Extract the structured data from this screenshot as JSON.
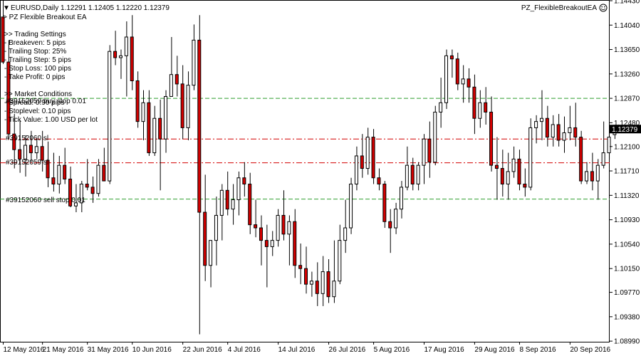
{
  "header": {
    "symbol_line": "EURUSD,Daily  1.12291 1.12405 1.12220 1.12379",
    "ea_name": "> PZ Flexible Breakout EA",
    "ea_corner_name": "PZ_FlexibleBreakoutEA"
  },
  "settings_lines": [
    ">> Trading Settings",
    "- Breakeven: 5 pips",
    "- Trailing Stop: 25%",
    "- Trailing Step: 5 pips",
    "- Stop Loss: 100 pips",
    "- Take Profit: 0 pips",
    "",
    ">> Market Conditions",
    "- Spread: 0.90 pips",
    "- Stoplevel: 0.10 pips",
    "- Tick Value: 1.00 USD per lot"
  ],
  "order_labels": {
    "buy_stop": "#39152059 buy stop 0.01",
    "sl_upper": "#39152060 sl",
    "sl_lower": "#39152059 sl",
    "sell_stop": "#39152060 sell stop 0.01"
  },
  "colors": {
    "bull_body": "#ffffff",
    "bear_body": "#d40000",
    "wick": "#000000",
    "buy_line": "#2e9f2e",
    "sl_line": "#d40000",
    "price_box": "#000000"
  },
  "chart_data": {
    "type": "candlestick",
    "symbol": "EURUSD",
    "timeframe": "Daily",
    "current_price": "1.12379",
    "ylim": [
      1.0898,
      1.1443
    ],
    "y_ticks": [
      "1.14430",
      "1.14040",
      "1.13650",
      "1.13260",
      "1.12870",
      "1.12480",
      "1.12100",
      "1.11710",
      "1.11320",
      "1.10930",
      "1.10540",
      "1.10150",
      "1.09770",
      "1.09380",
      "1.08990"
    ],
    "x_tick_labels": [
      "12 May 2016",
      "21 May 2016",
      "31 May 2016",
      "10 Jun 2016",
      "22 Jun 2016",
      "4 Jul 2016",
      "14 Jul 2016",
      "26 Jul 2016",
      "5 Aug 2016",
      "17 Aug 2016",
      "29 Aug 2016",
      "8 Sep 2016",
      "20 Sep 2016"
    ],
    "x_tick_bar_index": [
      0,
      7,
      15,
      23,
      32,
      40,
      49,
      58,
      66,
      75,
      84,
      92,
      101
    ],
    "levels": {
      "buy_stop": 1.1287,
      "sl_upper": 1.1222,
      "sl_lower": 1.1184,
      "sell_stop": 1.1126
    },
    "candles": [
      [
        1.1417,
        1.1443,
        1.1342,
        1.1345
      ],
      [
        1.1345,
        1.138,
        1.1222,
        1.123
      ],
      [
        1.123,
        1.1262,
        1.1175,
        1.1205
      ],
      [
        1.1205,
        1.1252,
        1.1168,
        1.119
      ],
      [
        1.119,
        1.1228,
        1.1162,
        1.1212
      ],
      [
        1.1212,
        1.1235,
        1.1185,
        1.12
      ],
      [
        1.12,
        1.1222,
        1.119,
        1.121
      ],
      [
        1.121,
        1.1235,
        1.117,
        1.1188
      ],
      [
        1.1188,
        1.1218,
        1.1145,
        1.116
      ],
      [
        1.116,
        1.12,
        1.1138,
        1.115
      ],
      [
        1.115,
        1.1195,
        1.1135,
        1.118
      ],
      [
        1.118,
        1.1208,
        1.115,
        1.1158
      ],
      [
        1.1158,
        1.1178,
        1.1113,
        1.1115
      ],
      [
        1.1115,
        1.115,
        1.1105,
        1.112
      ],
      [
        1.112,
        1.1155,
        1.1105,
        1.115
      ],
      [
        1.115,
        1.119,
        1.114,
        1.1145
      ],
      [
        1.1145,
        1.1162,
        1.112,
        1.1135
      ],
      [
        1.1135,
        1.119,
        1.113,
        1.118
      ],
      [
        1.118,
        1.1208,
        1.1155,
        1.1155
      ],
      [
        1.1155,
        1.1372,
        1.115,
        1.1362
      ],
      [
        1.1362,
        1.1395,
        1.134,
        1.1352
      ],
      [
        1.1352,
        1.1365,
        1.1318,
        1.1355
      ],
      [
        1.1355,
        1.141,
        1.129,
        1.1385
      ],
      [
        1.1385,
        1.142,
        1.13,
        1.1315
      ],
      [
        1.1315,
        1.133,
        1.124,
        1.125
      ],
      [
        1.125,
        1.13,
        1.122,
        1.128
      ],
      [
        1.128,
        1.13,
        1.1195,
        1.12
      ],
      [
        1.12,
        1.1275,
        1.1195,
        1.1255
      ],
      [
        1.1255,
        1.1285,
        1.114,
        1.1222
      ],
      [
        1.1222,
        1.13,
        1.12,
        1.129
      ],
      [
        1.129,
        1.1385,
        1.129,
        1.1325
      ],
      [
        1.1325,
        1.1355,
        1.129,
        1.131
      ],
      [
        1.131,
        1.134,
        1.1222,
        1.124
      ],
      [
        1.124,
        1.133,
        1.122,
        1.1308
      ],
      [
        1.1308,
        1.1405,
        1.13,
        1.138
      ],
      [
        1.138,
        1.142,
        1.091,
        1.1105
      ],
      [
        1.1105,
        1.1165,
        1.0995,
        1.102
      ],
      [
        1.102,
        1.106,
        1.0985,
        1.106
      ],
      [
        1.106,
        1.113,
        1.102,
        1.11
      ],
      [
        1.11,
        1.115,
        1.106,
        1.114
      ],
      [
        1.114,
        1.117,
        1.11,
        1.111
      ],
      [
        1.111,
        1.115,
        1.1085,
        1.1125
      ],
      [
        1.1125,
        1.117,
        1.11,
        1.116
      ],
      [
        1.116,
        1.1185,
        1.113,
        1.115
      ],
      [
        1.115,
        1.1168,
        1.107,
        1.1085
      ],
      [
        1.1085,
        1.1125,
        1.1065,
        1.108
      ],
      [
        1.108,
        1.11,
        1.102,
        1.106
      ],
      [
        1.106,
        1.1085,
        1.0985,
        1.105
      ],
      [
        1.105,
        1.1075,
        1.1035,
        1.106
      ],
      [
        1.106,
        1.111,
        1.105,
        1.11
      ],
      [
        1.11,
        1.114,
        1.106,
        1.107
      ],
      [
        1.107,
        1.11,
        1.102,
        1.109
      ],
      [
        1.109,
        1.111,
        1.1,
        1.102
      ],
      [
        1.102,
        1.1055,
        1.099,
        1.1015
      ],
      [
        1.1015,
        1.105,
        1.0975,
        1.099
      ],
      [
        1.099,
        1.101,
        1.097,
        1.0995
      ],
      [
        1.0995,
        1.1025,
        1.0955,
        1.0975
      ],
      [
        1.0975,
        1.1035,
        1.0955,
        1.101
      ],
      [
        1.101,
        1.103,
        1.096,
        1.097
      ],
      [
        1.097,
        1.106,
        1.096,
        1.0995
      ],
      [
        1.0995,
        1.1085,
        1.099,
        1.106
      ],
      [
        1.106,
        1.1125,
        1.104,
        1.108
      ],
      [
        1.108,
        1.116,
        1.107,
        1.115
      ],
      [
        1.115,
        1.121,
        1.114,
        1.1195
      ],
      [
        1.1195,
        1.123,
        1.116,
        1.1175
      ],
      [
        1.1175,
        1.124,
        1.1165,
        1.1225
      ],
      [
        1.1225,
        1.1238,
        1.115,
        1.116
      ],
      [
        1.116,
        1.1175,
        1.114,
        1.115
      ],
      [
        1.115,
        1.1155,
        1.108,
        1.109
      ],
      [
        1.109,
        1.111,
        1.104,
        1.108
      ],
      [
        1.108,
        1.112,
        1.107,
        1.111
      ],
      [
        1.111,
        1.1155,
        1.1095,
        1.1145
      ],
      [
        1.1145,
        1.121,
        1.114,
        1.118
      ],
      [
        1.118,
        1.1192,
        1.114,
        1.115
      ],
      [
        1.115,
        1.1185,
        1.114,
        1.118
      ],
      [
        1.118,
        1.123,
        1.115,
        1.1222
      ],
      [
        1.1222,
        1.125,
        1.116,
        1.1185
      ],
      [
        1.1185,
        1.1275,
        1.118,
        1.1265
      ],
      [
        1.1265,
        1.132,
        1.124,
        1.128
      ],
      [
        1.128,
        1.1365,
        1.127,
        1.1355
      ],
      [
        1.1355,
        1.1365,
        1.132,
        1.135
      ],
      [
        1.135,
        1.136,
        1.13,
        1.131
      ],
      [
        1.131,
        1.134,
        1.128,
        1.1318
      ],
      [
        1.1318,
        1.1335,
        1.128,
        1.1305
      ],
      [
        1.1305,
        1.1325,
        1.123,
        1.1255
      ],
      [
        1.1255,
        1.13,
        1.124,
        1.128
      ],
      [
        1.128,
        1.1305,
        1.1245,
        1.1265
      ],
      [
        1.1265,
        1.129,
        1.117,
        1.118
      ],
      [
        1.118,
        1.1225,
        1.1125,
        1.1175
      ],
      [
        1.1175,
        1.1205,
        1.113,
        1.115
      ],
      [
        1.115,
        1.12,
        1.1125,
        1.117
      ],
      [
        1.117,
        1.121,
        1.116,
        1.119
      ],
      [
        1.119,
        1.1205,
        1.114,
        1.115
      ],
      [
        1.115,
        1.1175,
        1.113,
        1.1145
      ],
      [
        1.1145,
        1.1255,
        1.114,
        1.124
      ],
      [
        1.124,
        1.126,
        1.1215,
        1.125
      ],
      [
        1.125,
        1.13,
        1.122,
        1.1255
      ],
      [
        1.1255,
        1.1275,
        1.121,
        1.1225
      ],
      [
        1.1225,
        1.126,
        1.121,
        1.1245
      ],
      [
        1.1245,
        1.1262,
        1.121,
        1.122
      ],
      [
        1.122,
        1.1258,
        1.12,
        1.1232
      ],
      [
        1.1232,
        1.1275,
        1.122,
        1.124
      ],
      [
        1.124,
        1.128,
        1.121,
        1.1225
      ],
      [
        1.1225,
        1.1235,
        1.115,
        1.1155
      ],
      [
        1.1155,
        1.1185,
        1.115,
        1.117
      ],
      [
        1.117,
        1.12,
        1.114,
        1.1155
      ],
      [
        1.1155,
        1.119,
        1.1125,
        1.118
      ],
      [
        1.118,
        1.125,
        1.1175,
        1.12
      ],
      [
        1.12,
        1.124,
        1.119,
        1.1225
      ],
      [
        1.1229,
        1.124,
        1.1222,
        1.1238
      ]
    ]
  }
}
